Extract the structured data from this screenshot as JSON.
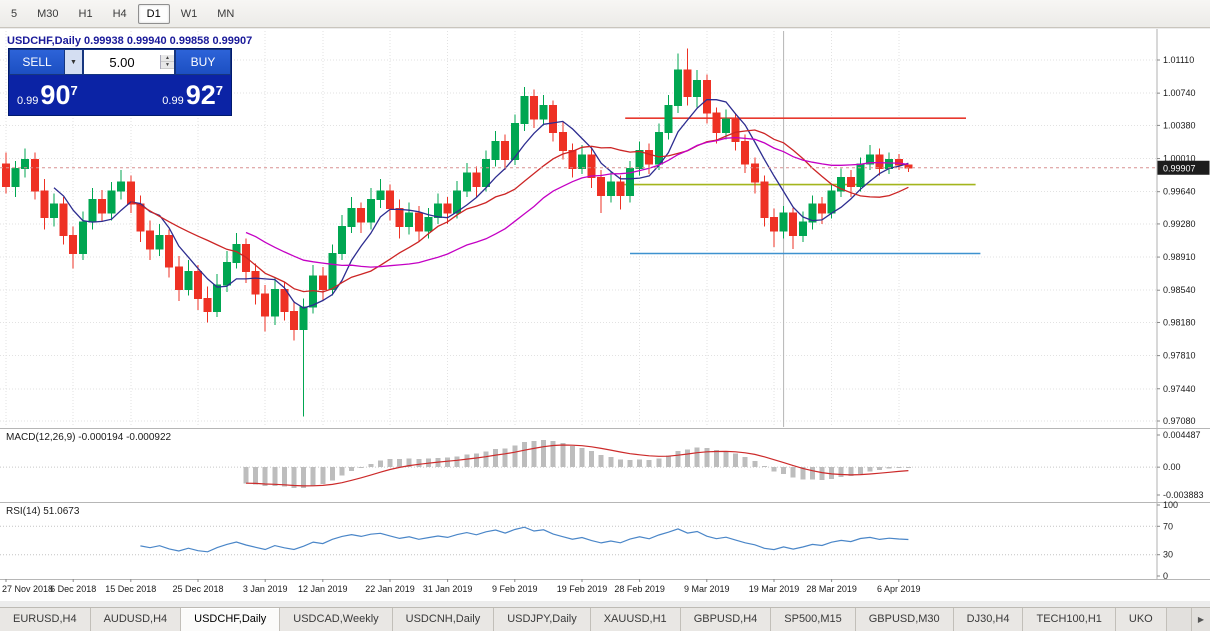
{
  "toolbar": {
    "timeframes": [
      {
        "label": "5",
        "active": false
      },
      {
        "label": "M30",
        "active": false
      },
      {
        "label": "H1",
        "active": false
      },
      {
        "label": "H4",
        "active": false
      },
      {
        "label": "D1",
        "active": true
      },
      {
        "label": "W1",
        "active": false
      },
      {
        "label": "MN",
        "active": false
      }
    ]
  },
  "chart": {
    "header": "USDCHF,Daily 0.99938 0.99940 0.99858 0.99907"
  },
  "trade_panel": {
    "sell_label": "SELL",
    "buy_label": "BUY",
    "volume": "5.00",
    "sell_price": {
      "prefix": "0.99",
      "big": "90",
      "sup": "7"
    },
    "buy_price": {
      "prefix": "0.99",
      "big": "92",
      "sup": "7"
    }
  },
  "indicators": {
    "macd_header": "MACD(12,26,9) -0.000194 -0.000922",
    "rsi_header": "RSI(14) 51.0673"
  },
  "tabs": {
    "items": [
      "EURUSD,H4",
      "AUDUSD,H4",
      "USDCHF,Daily",
      "USDCAD,Weekly",
      "USDCNH,Daily",
      "USDJPY,Daily",
      "XAUUSD,H1",
      "GBPUSD,H4",
      "SP500,M15",
      "GBPUSD,M30",
      "DJ30,H4",
      "TECH100,H1",
      "UKO"
    ],
    "active": "USDCHF,Daily",
    "scroll_right_icon": "▶"
  },
  "chart_data": {
    "type": "candlestick",
    "symbol": "USDCHF",
    "timeframe": "Daily",
    "current_price": "0.99907",
    "candle_up_color": "#00a651",
    "candle_down_color": "#ee3124",
    "price_axis": {
      "labels": [
        "1.01110",
        "1.00740",
        "1.00380",
        "1.00010",
        "0.99640",
        "0.99280",
        "0.98910",
        "0.98540",
        "0.98180",
        "0.97810",
        "0.97440",
        "0.97080"
      ]
    },
    "time_axis": {
      "labels": [
        {
          "text": "27 Nov 2018",
          "index": 0
        },
        {
          "text": "6 Dec 2018",
          "index": 7
        },
        {
          "text": "15 Dec 2018",
          "index": 13
        },
        {
          "text": "25 Dec 2018",
          "index": 20
        },
        {
          "text": "3 Jan 2019",
          "index": 27
        },
        {
          "text": "12 Jan 2019",
          "index": 33
        },
        {
          "text": "22 Jan 2019",
          "index": 40
        },
        {
          "text": "31 Jan 2019",
          "index": 46
        },
        {
          "text": "9 Feb 2019",
          "index": 53
        },
        {
          "text": "19 Feb 2019",
          "index": 60
        },
        {
          "text": "28 Feb 2019",
          "index": 66
        },
        {
          "text": "9 Mar 2019",
          "index": 73
        },
        {
          "text": "19 Mar 2019",
          "index": 80
        },
        {
          "text": "28 Mar 2019",
          "index": 86
        },
        {
          "text": "6 Apr 2019",
          "index": 93
        }
      ]
    },
    "candles": [
      [
        0.9995,
        1.0008,
        0.9962,
        0.997
      ],
      [
        0.997,
        0.9998,
        0.9958,
        0.999
      ],
      [
        0.999,
        1.0012,
        0.998,
        1.0
      ],
      [
        1.0,
        1.0008,
        0.9955,
        0.9965
      ],
      [
        0.9965,
        0.9978,
        0.9922,
        0.9935
      ],
      [
        0.9935,
        0.9962,
        0.9925,
        0.995
      ],
      [
        0.995,
        0.9958,
        0.9905,
        0.9915
      ],
      [
        0.9915,
        0.9925,
        0.9878,
        0.9895
      ],
      [
        0.9895,
        0.9942,
        0.9888,
        0.993
      ],
      [
        0.993,
        0.9968,
        0.9922,
        0.9955
      ],
      [
        0.9955,
        0.9966,
        0.993,
        0.994
      ],
      [
        0.994,
        0.9975,
        0.9932,
        0.9965
      ],
      [
        0.9965,
        0.9988,
        0.9955,
        0.9975
      ],
      [
        0.9975,
        0.9982,
        0.994,
        0.995
      ],
      [
        0.995,
        0.996,
        0.9908,
        0.992
      ],
      [
        0.992,
        0.9932,
        0.9888,
        0.99
      ],
      [
        0.99,
        0.9928,
        0.9892,
        0.9915
      ],
      [
        0.9915,
        0.9922,
        0.9868,
        0.988
      ],
      [
        0.988,
        0.9892,
        0.9842,
        0.9855
      ],
      [
        0.9855,
        0.9888,
        0.9848,
        0.9875
      ],
      [
        0.9875,
        0.9882,
        0.9832,
        0.9845
      ],
      [
        0.9845,
        0.9858,
        0.9818,
        0.983
      ],
      [
        0.983,
        0.9872,
        0.9824,
        0.986
      ],
      [
        0.986,
        0.9898,
        0.9852,
        0.9885
      ],
      [
        0.9885,
        0.9918,
        0.9878,
        0.9905
      ],
      [
        0.9905,
        0.9912,
        0.9862,
        0.9875
      ],
      [
        0.9875,
        0.9884,
        0.9838,
        0.985
      ],
      [
        0.985,
        0.986,
        0.9808,
        0.9825
      ],
      [
        0.9825,
        0.9868,
        0.9815,
        0.9855
      ],
      [
        0.9855,
        0.9864,
        0.982,
        0.983
      ],
      [
        0.983,
        0.9842,
        0.9798,
        0.981
      ],
      [
        0.981,
        0.9845,
        0.9713,
        0.9835
      ],
      [
        0.9835,
        0.9882,
        0.9828,
        0.987
      ],
      [
        0.987,
        0.988,
        0.9842,
        0.9855
      ],
      [
        0.9855,
        0.9905,
        0.9848,
        0.9895
      ],
      [
        0.9895,
        0.9938,
        0.9888,
        0.9925
      ],
      [
        0.9925,
        0.9958,
        0.9918,
        0.9945
      ],
      [
        0.9945,
        0.9952,
        0.9918,
        0.993
      ],
      [
        0.993,
        0.9968,
        0.9922,
        0.9955
      ],
      [
        0.9955,
        0.9978,
        0.9946,
        0.9965
      ],
      [
        0.9965,
        0.9972,
        0.9932,
        0.9945
      ],
      [
        0.9945,
        0.9955,
        0.9912,
        0.9925
      ],
      [
        0.9925,
        0.9952,
        0.9916,
        0.994
      ],
      [
        0.994,
        0.9948,
        0.9908,
        0.992
      ],
      [
        0.992,
        0.9946,
        0.9912,
        0.9935
      ],
      [
        0.9935,
        0.9962,
        0.9928,
        0.995
      ],
      [
        0.995,
        0.9958,
        0.9928,
        0.994
      ],
      [
        0.994,
        0.9976,
        0.9934,
        0.9965
      ],
      [
        0.9965,
        0.9996,
        0.9958,
        0.9985
      ],
      [
        0.9985,
        0.9992,
        0.9958,
        0.997
      ],
      [
        0.997,
        1.001,
        0.9964,
        1.0
      ],
      [
        1.0,
        1.0032,
        0.9992,
        1.002
      ],
      [
        1.002,
        1.0028,
        0.9988,
        1.0
      ],
      [
        1.0,
        1.005,
        0.9994,
        1.004
      ],
      [
        1.004,
        1.0081,
        1.0032,
        1.007
      ],
      [
        1.007,
        1.0078,
        1.0035,
        1.0045
      ],
      [
        1.0045,
        1.0072,
        1.0038,
        1.006
      ],
      [
        1.006,
        1.0066,
        1.002,
        1.003
      ],
      [
        1.003,
        1.0042,
        1.0,
        1.001
      ],
      [
        1.001,
        1.0018,
        0.998,
        0.999
      ],
      [
        0.999,
        1.0016,
        0.9984,
        1.0005
      ],
      [
        1.0005,
        1.0012,
        0.9968,
        0.998
      ],
      [
        0.998,
        0.9988,
        0.994,
        0.996
      ],
      [
        0.996,
        0.9986,
        0.9952,
        0.9975
      ],
      [
        0.9975,
        0.9982,
        0.9944,
        0.996
      ],
      [
        0.996,
        0.9998,
        0.9952,
        0.999
      ],
      [
        0.999,
        1.002,
        0.9982,
        1.001
      ],
      [
        1.001,
        1.0018,
        0.9984,
        0.9995
      ],
      [
        0.9995,
        1.004,
        0.9988,
        1.003
      ],
      [
        1.003,
        1.0072,
        1.0022,
        1.006
      ],
      [
        1.006,
        1.0118,
        1.0052,
        1.01
      ],
      [
        1.01,
        1.0124,
        1.006,
        1.007
      ],
      [
        1.007,
        1.01,
        1.0058,
        1.0088
      ],
      [
        1.0088,
        1.0095,
        1.004,
        1.0052
      ],
      [
        1.0052,
        1.0058,
        1.0018,
        1.003
      ],
      [
        1.003,
        1.0056,
        1.0022,
        1.0045
      ],
      [
        1.0045,
        1.0052,
        1.001,
        1.002
      ],
      [
        1.002,
        1.0028,
        0.9985,
        0.9995
      ],
      [
        0.9995,
        1.0002,
        0.9962,
        0.9975
      ],
      [
        0.9975,
        0.9982,
        0.9925,
        0.9935
      ],
      [
        0.9935,
        0.9945,
        0.9902,
        0.992
      ],
      [
        0.992,
        0.9948,
        0.9912,
        0.994
      ],
      [
        0.994,
        0.9946,
        0.99,
        0.9915
      ],
      [
        0.9915,
        0.9942,
        0.9908,
        0.993
      ],
      [
        0.993,
        0.996,
        0.9922,
        0.995
      ],
      [
        0.995,
        0.9958,
        0.9928,
        0.994
      ],
      [
        0.994,
        0.9972,
        0.9934,
        0.9965
      ],
      [
        0.9965,
        0.999,
        0.9958,
        0.998
      ],
      [
        0.998,
        0.9988,
        0.9958,
        0.997
      ],
      [
        0.997,
        1.0002,
        0.9964,
        0.9995
      ],
      [
        0.9995,
        1.0016,
        0.9988,
        1.0005
      ],
      [
        1.0005,
        1.0012,
        0.9982,
        0.999
      ],
      [
        0.999,
        1.0008,
        0.9984,
        1.0
      ],
      [
        1.0,
        1.0006,
        0.9988,
        0.9994
      ],
      [
        0.99938,
        0.9994,
        0.99858,
        0.99907
      ]
    ],
    "moving_averages": [
      {
        "period": 6,
        "color": "#2d2d90"
      },
      {
        "period": 14,
        "color": "#cc2525"
      },
      {
        "period": 26,
        "color": "#c400c4"
      }
    ],
    "objects": {
      "hlines": [
        {
          "price": 1.0046,
          "from": 64.5,
          "to": 100,
          "color": "#e8392e"
        },
        {
          "price": 0.9972,
          "from": 64,
          "to": 101,
          "color": "#a3b51c"
        },
        {
          "price": 0.9895,
          "from": 65,
          "to": 101.5,
          "color": "#3e92cf"
        }
      ],
      "vlines": [
        {
          "index": 81,
          "color": "#b4b4b4"
        }
      ]
    },
    "macd": {
      "fast": 12,
      "slow": 26,
      "signal": 9,
      "histogram_color": "#bdbdbd",
      "signal_color": "#cc2a2a",
      "axis_labels": [
        {
          "text": "0.004487",
          "value": 0.004487
        },
        {
          "text": "0.00",
          "value": 0
        },
        {
          "text": "-0.003883",
          "value": -0.003883
        }
      ]
    },
    "rsi": {
      "period": 14,
      "color": "#4a86c8",
      "levels": [
        {
          "text": "100",
          "value": 100
        },
        {
          "text": "70",
          "value": 70
        },
        {
          "text": "30",
          "value": 30
        },
        {
          "text": "0",
          "value": 0
        }
      ]
    }
  }
}
